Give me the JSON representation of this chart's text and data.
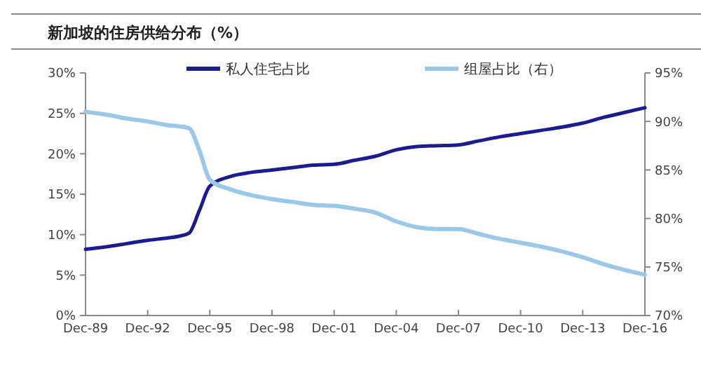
{
  "chart_data": {
    "type": "line",
    "title": "新加坡的住房供给分布（%）",
    "x": [
      "1989-12",
      "1990-12",
      "1991-12",
      "1992-12",
      "1993-12",
      "1994-06",
      "1994-12",
      "1995-06",
      "1995-12",
      "1996-12",
      "1997-12",
      "1998-12",
      "1999-12",
      "2000-12",
      "2001-12",
      "2002-12",
      "2003-12",
      "2004-12",
      "2005-12",
      "2006-12",
      "2007-12",
      "2008-12",
      "2009-12",
      "2010-12",
      "2011-12",
      "2012-12",
      "2013-12",
      "2014-12",
      "2015-12",
      "2016-12"
    ],
    "series": [
      {
        "name": "私人住宅占比",
        "color": "#1c1c8e",
        "values": [
          8.2,
          8.5,
          8.9,
          9.3,
          9.6,
          9.8,
          10.2,
          13.0,
          16.0,
          17.2,
          17.7,
          18.0,
          18.3,
          18.6,
          18.7,
          19.2,
          19.7,
          20.5,
          20.9,
          21.0,
          21.1,
          21.6,
          22.1,
          22.5,
          22.9,
          23.3,
          23.8,
          24.5,
          25.1,
          25.7
        ]
      },
      {
        "name": "组屋占比（右）",
        "color": "#9cc8e8",
        "axis": "y2",
        "values": [
          91.0,
          90.7,
          90.3,
          90.0,
          89.6,
          89.5,
          89.3,
          87.0,
          84.0,
          83.0,
          82.4,
          82.0,
          81.7,
          81.4,
          81.3,
          81.0,
          80.6,
          79.7,
          79.1,
          78.9,
          78.9,
          78.4,
          77.9,
          77.5,
          77.1,
          76.6,
          76.0,
          75.3,
          74.7,
          74.2
        ]
      }
    ],
    "xlim": [
      "1989-12",
      "2016-12"
    ],
    "xticks": [
      {
        "value": "1989-12",
        "label": "Dec-89"
      },
      {
        "value": "1992-12",
        "label": "Dec-92"
      },
      {
        "value": "1995-12",
        "label": "Dec-95"
      },
      {
        "value": "1998-12",
        "label": "Dec-98"
      },
      {
        "value": "2001-12",
        "label": "Dec-01"
      },
      {
        "value": "2004-12",
        "label": "Dec-04"
      },
      {
        "value": "2007-12",
        "label": "Dec-07"
      },
      {
        "value": "2010-12",
        "label": "Dec-10"
      },
      {
        "value": "2013-12",
        "label": "Dec-13"
      },
      {
        "value": "2016-12",
        "label": "Dec-16"
      }
    ],
    "ylim": [
      0,
      30
    ],
    "yticks": [
      {
        "value": 0,
        "label": "0%"
      },
      {
        "value": 5,
        "label": "5%"
      },
      {
        "value": 10,
        "label": "10%"
      },
      {
        "value": 15,
        "label": "15%"
      },
      {
        "value": 20,
        "label": "20%"
      },
      {
        "value": 25,
        "label": "25%"
      },
      {
        "value": 30,
        "label": "30%"
      }
    ],
    "y2lim": [
      70,
      95
    ],
    "y2ticks": [
      {
        "value": 70,
        "label": "70%"
      },
      {
        "value": 75,
        "label": "75%"
      },
      {
        "value": 80,
        "label": "80%"
      },
      {
        "value": 85,
        "label": "85%"
      },
      {
        "value": 90,
        "label": "90%"
      },
      {
        "value": 95,
        "label": "95%"
      }
    ],
    "legend": "top",
    "grid": false,
    "line_style": "solid",
    "marker": "none"
  }
}
